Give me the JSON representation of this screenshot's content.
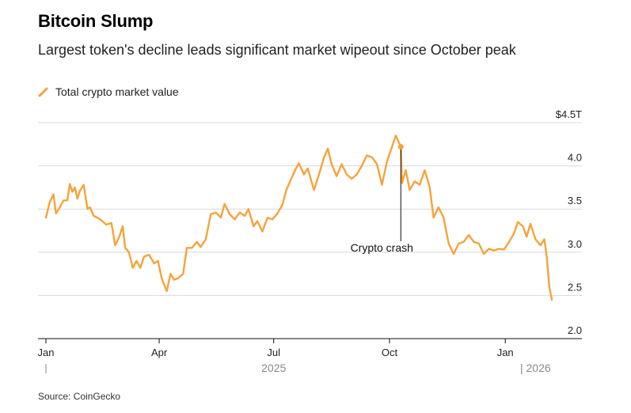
{
  "header": {
    "title": "Bitcoin Slump",
    "subtitle": "Largest token's decline leads significant market wipeout since October peak"
  },
  "footer": {
    "source": "Source: CoinGecko"
  },
  "colors": {
    "series": "#f6a33a",
    "grid": "#d9d9d9",
    "axis": "#111111",
    "year_label": "#888888"
  },
  "chart_data": {
    "type": "line",
    "legend": {
      "placement": "top-left",
      "entries": [
        "Total crypto market value"
      ]
    },
    "yaxis": {
      "ticks": [
        {
          "value": 4.5,
          "label": "$4.5T"
        },
        {
          "value": 4.0,
          "label": "4.0"
        },
        {
          "value": 3.5,
          "label": "3.5"
        },
        {
          "value": 3.0,
          "label": "3.0"
        },
        {
          "value": 2.5,
          "label": "2.5"
        },
        {
          "value": 2.0,
          "label": "2.0"
        }
      ],
      "ylim": [
        2.0,
        4.5
      ],
      "grid": true
    },
    "xaxis": {
      "ticks": [
        {
          "date": "2025-01-01",
          "label": "Jan"
        },
        {
          "date": "2025-04-01",
          "label": "Apr"
        },
        {
          "date": "2025-07-01",
          "label": "Jul"
        },
        {
          "date": "2025-10-01",
          "label": "Oct"
        },
        {
          "date": "2026-01-01",
          "label": "Jan"
        }
      ],
      "years": [
        {
          "date": "2025-07-01",
          "label": "2025"
        },
        {
          "date": "2026-01-25",
          "label": "| 2026"
        }
      ],
      "xlim": [
        "2025-01-01",
        "2026-02-28"
      ]
    },
    "annotations": [
      {
        "label": "Crypto crash",
        "date": "2025-10-10",
        "value": 4.22
      }
    ],
    "series": [
      {
        "name": "Total crypto market value",
        "points": [
          [
            "2025-01-01",
            3.4
          ],
          [
            "2025-01-04",
            3.58
          ],
          [
            "2025-01-07",
            3.67
          ],
          [
            "2025-01-09",
            3.45
          ],
          [
            "2025-01-12",
            3.52
          ],
          [
            "2025-01-15",
            3.6
          ],
          [
            "2025-01-18",
            3.6
          ],
          [
            "2025-01-20",
            3.79
          ],
          [
            "2025-01-22",
            3.7
          ],
          [
            "2025-01-24",
            3.75
          ],
          [
            "2025-01-26",
            3.62
          ],
          [
            "2025-01-28",
            3.71
          ],
          [
            "2025-01-31",
            3.78
          ],
          [
            "2025-02-03",
            3.5
          ],
          [
            "2025-02-05",
            3.52
          ],
          [
            "2025-02-08",
            3.42
          ],
          [
            "2025-02-11",
            3.4
          ],
          [
            "2025-02-14",
            3.37
          ],
          [
            "2025-02-18",
            3.32
          ],
          [
            "2025-02-22",
            3.34
          ],
          [
            "2025-02-25",
            3.08
          ],
          [
            "2025-02-28",
            3.17
          ],
          [
            "2025-03-03",
            3.3
          ],
          [
            "2025-03-05",
            3.05
          ],
          [
            "2025-03-08",
            3.0
          ],
          [
            "2025-03-11",
            2.82
          ],
          [
            "2025-03-14",
            2.9
          ],
          [
            "2025-03-17",
            2.82
          ],
          [
            "2025-03-20",
            2.95
          ],
          [
            "2025-03-24",
            2.97
          ],
          [
            "2025-03-28",
            2.87
          ],
          [
            "2025-03-31",
            2.9
          ],
          [
            "2025-04-03",
            2.7
          ],
          [
            "2025-04-07",
            2.55
          ],
          [
            "2025-04-10",
            2.75
          ],
          [
            "2025-04-13",
            2.68
          ],
          [
            "2025-04-16",
            2.7
          ],
          [
            "2025-04-20",
            2.75
          ],
          [
            "2025-04-23",
            3.05
          ],
          [
            "2025-04-27",
            3.05
          ],
          [
            "2025-05-01",
            3.12
          ],
          [
            "2025-05-04",
            3.06
          ],
          [
            "2025-05-08",
            3.15
          ],
          [
            "2025-05-12",
            3.44
          ],
          [
            "2025-05-16",
            3.46
          ],
          [
            "2025-05-20",
            3.4
          ],
          [
            "2025-05-23",
            3.56
          ],
          [
            "2025-05-27",
            3.44
          ],
          [
            "2025-05-31",
            3.38
          ],
          [
            "2025-06-04",
            3.46
          ],
          [
            "2025-06-08",
            3.42
          ],
          [
            "2025-06-11",
            3.5
          ],
          [
            "2025-06-15",
            3.3
          ],
          [
            "2025-06-18",
            3.36
          ],
          [
            "2025-06-22",
            3.24
          ],
          [
            "2025-06-26",
            3.4
          ],
          [
            "2025-06-30",
            3.38
          ],
          [
            "2025-07-04",
            3.45
          ],
          [
            "2025-07-08",
            3.55
          ],
          [
            "2025-07-11",
            3.72
          ],
          [
            "2025-07-14",
            3.82
          ],
          [
            "2025-07-18",
            3.95
          ],
          [
            "2025-07-21",
            4.03
          ],
          [
            "2025-07-25",
            3.9
          ],
          [
            "2025-07-28",
            3.97
          ],
          [
            "2025-08-02",
            3.72
          ],
          [
            "2025-08-06",
            3.9
          ],
          [
            "2025-08-10",
            4.1
          ],
          [
            "2025-08-13",
            4.2
          ],
          [
            "2025-08-16",
            4.02
          ],
          [
            "2025-08-20",
            3.88
          ],
          [
            "2025-08-24",
            4.02
          ],
          [
            "2025-08-28",
            3.9
          ],
          [
            "2025-09-01",
            3.85
          ],
          [
            "2025-09-05",
            3.9
          ],
          [
            "2025-09-09",
            4.0
          ],
          [
            "2025-09-13",
            4.12
          ],
          [
            "2025-09-17",
            4.1
          ],
          [
            "2025-09-21",
            4.02
          ],
          [
            "2025-09-25",
            3.78
          ],
          [
            "2025-09-29",
            4.05
          ],
          [
            "2025-10-03",
            4.22
          ],
          [
            "2025-10-06",
            4.35
          ],
          [
            "2025-10-10",
            4.22
          ],
          [
            "2025-10-11",
            3.8
          ],
          [
            "2025-10-14",
            3.95
          ],
          [
            "2025-10-17",
            3.72
          ],
          [
            "2025-10-21",
            3.82
          ],
          [
            "2025-10-25",
            3.78
          ],
          [
            "2025-10-29",
            3.95
          ],
          [
            "2025-11-02",
            3.75
          ],
          [
            "2025-11-05",
            3.4
          ],
          [
            "2025-11-09",
            3.52
          ],
          [
            "2025-11-13",
            3.4
          ],
          [
            "2025-11-17",
            3.1
          ],
          [
            "2025-11-21",
            2.98
          ],
          [
            "2025-11-25",
            3.1
          ],
          [
            "2025-11-29",
            3.12
          ],
          [
            "2025-12-03",
            3.2
          ],
          [
            "2025-12-07",
            3.12
          ],
          [
            "2025-12-11",
            3.1
          ],
          [
            "2025-12-15",
            2.98
          ],
          [
            "2025-12-19",
            3.04
          ],
          [
            "2025-12-23",
            3.02
          ],
          [
            "2025-12-27",
            3.04
          ],
          [
            "2025-12-31",
            3.03
          ],
          [
            "2026-01-04",
            3.12
          ],
          [
            "2026-01-08",
            3.22
          ],
          [
            "2026-01-11",
            3.35
          ],
          [
            "2026-01-15",
            3.3
          ],
          [
            "2026-01-18",
            3.18
          ],
          [
            "2026-01-21",
            3.33
          ],
          [
            "2026-01-25",
            3.15
          ],
          [
            "2026-01-29",
            3.08
          ],
          [
            "2026-02-01",
            3.15
          ],
          [
            "2026-02-03",
            2.95
          ],
          [
            "2026-02-05",
            2.6
          ],
          [
            "2026-02-07",
            2.45
          ]
        ]
      }
    ]
  }
}
